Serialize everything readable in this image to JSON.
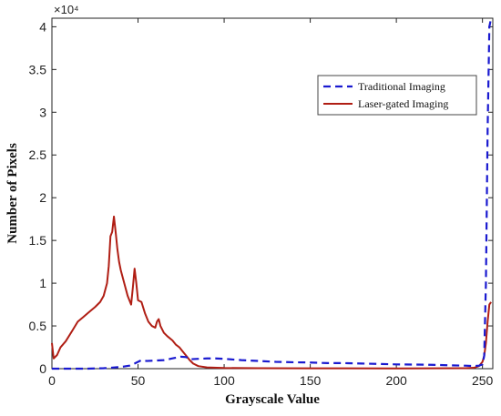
{
  "chart_data": {
    "type": "line",
    "title": "",
    "xlabel": "Grayscale Value",
    "ylabel": "Number of Pixels",
    "xlim": [
      0,
      256
    ],
    "ylim": [
      0,
      41000
    ],
    "xticks": [
      0,
      50,
      100,
      150,
      200,
      250
    ],
    "yticks": [
      0,
      5000,
      10000,
      15000,
      20000,
      25000,
      30000,
      35000,
      40000
    ],
    "ytick_labels": [
      "0",
      "0.5",
      "1",
      "1.5",
      "2",
      "2.5",
      "3",
      "3.5",
      "4"
    ],
    "y_multiplier": "×10⁴",
    "grid": false,
    "legend_position": "top-right",
    "series": [
      {
        "name": "Traditional Imaging",
        "color": "#1a1ad0",
        "style": "dashed",
        "points": [
          [
            0,
            0
          ],
          [
            10,
            0
          ],
          [
            20,
            0
          ],
          [
            30,
            50
          ],
          [
            40,
            200
          ],
          [
            45,
            350
          ],
          [
            48,
            600
          ],
          [
            50,
            800
          ],
          [
            52,
            1000
          ],
          [
            55,
            900
          ],
          [
            60,
            950
          ],
          [
            65,
            1000
          ],
          [
            70,
            1200
          ],
          [
            75,
            1400
          ],
          [
            78,
            1350
          ],
          [
            80,
            1100
          ],
          [
            85,
            1150
          ],
          [
            90,
            1200
          ],
          [
            95,
            1200
          ],
          [
            100,
            1150
          ],
          [
            110,
            1000
          ],
          [
            120,
            900
          ],
          [
            130,
            800
          ],
          [
            140,
            750
          ],
          [
            150,
            720
          ],
          [
            160,
            650
          ],
          [
            170,
            650
          ],
          [
            180,
            600
          ],
          [
            190,
            550
          ],
          [
            200,
            500
          ],
          [
            210,
            480
          ],
          [
            220,
            450
          ],
          [
            230,
            400
          ],
          [
            240,
            350
          ],
          [
            245,
            300
          ],
          [
            248,
            350
          ],
          [
            250,
            500
          ],
          [
            251,
            1500
          ],
          [
            252,
            10000
          ],
          [
            253,
            28000
          ],
          [
            254,
            40000
          ],
          [
            255,
            41000
          ]
        ]
      },
      {
        "name": "Laser-gated Imaging",
        "color": "#b01e14",
        "style": "solid",
        "points": [
          [
            0,
            3000
          ],
          [
            1,
            1200
          ],
          [
            3,
            1600
          ],
          [
            5,
            2500
          ],
          [
            8,
            3200
          ],
          [
            12,
            4500
          ],
          [
            15,
            5500
          ],
          [
            18,
            6000
          ],
          [
            22,
            6700
          ],
          [
            25,
            7200
          ],
          [
            28,
            7800
          ],
          [
            30,
            8500
          ],
          [
            32,
            10000
          ],
          [
            33,
            12000
          ],
          [
            34,
            15500
          ],
          [
            35,
            16000
          ],
          [
            36,
            17800
          ],
          [
            37,
            16000
          ],
          [
            38,
            14000
          ],
          [
            39,
            12500
          ],
          [
            40,
            11500
          ],
          [
            42,
            10000
          ],
          [
            44,
            8500
          ],
          [
            46,
            7500
          ],
          [
            47,
            9500
          ],
          [
            48,
            11700
          ],
          [
            49,
            10000
          ],
          [
            50,
            8000
          ],
          [
            52,
            7800
          ],
          [
            54,
            6500
          ],
          [
            56,
            5500
          ],
          [
            58,
            5000
          ],
          [
            60,
            4800
          ],
          [
            61,
            5500
          ],
          [
            62,
            5800
          ],
          [
            63,
            5000
          ],
          [
            65,
            4200
          ],
          [
            67,
            3800
          ],
          [
            70,
            3300
          ],
          [
            72,
            2800
          ],
          [
            74,
            2500
          ],
          [
            76,
            2000
          ],
          [
            78,
            1500
          ],
          [
            80,
            1000
          ],
          [
            82,
            600
          ],
          [
            85,
            300
          ],
          [
            90,
            150
          ],
          [
            100,
            80
          ],
          [
            120,
            50
          ],
          [
            150,
            40
          ],
          [
            200,
            30
          ],
          [
            240,
            50
          ],
          [
            245,
            100
          ],
          [
            248,
            300
          ],
          [
            250,
            800
          ],
          [
            251,
            1500
          ],
          [
            252,
            3000
          ],
          [
            253,
            5500
          ],
          [
            254,
            7500
          ],
          [
            255,
            7800
          ]
        ]
      }
    ]
  }
}
